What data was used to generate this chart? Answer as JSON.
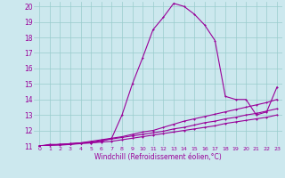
{
  "xlabel": "Windchill (Refroidissement éolien,°C)",
  "bg_color": "#cce8ee",
  "line_color": "#990099",
  "grid_color": "#99cccc",
  "xlim": [
    -0.5,
    23.5
  ],
  "ylim": [
    11,
    20.3
  ],
  "xticks": [
    0,
    1,
    2,
    3,
    4,
    5,
    6,
    7,
    8,
    9,
    10,
    11,
    12,
    13,
    14,
    15,
    16,
    17,
    18,
    19,
    20,
    21,
    22,
    23
  ],
  "yticks": [
    11,
    12,
    13,
    14,
    15,
    16,
    17,
    18,
    19,
    20
  ],
  "main_x": [
    0,
    1,
    2,
    3,
    4,
    5,
    6,
    7,
    8,
    9,
    10,
    11,
    12,
    13,
    14,
    15,
    16,
    17,
    18,
    19,
    20,
    21,
    22,
    23
  ],
  "main_y": [
    11.0,
    11.1,
    11.1,
    11.1,
    11.2,
    11.2,
    11.3,
    11.5,
    13.0,
    15.0,
    16.7,
    18.5,
    19.3,
    20.2,
    20.0,
    19.5,
    18.8,
    17.8,
    14.2,
    14.0,
    14.0,
    13.0,
    13.2,
    14.8
  ],
  "line2_x": [
    0,
    1,
    2,
    3,
    4,
    5,
    6,
    7,
    8,
    9,
    10,
    11,
    12,
    13,
    14,
    15,
    16,
    17,
    18,
    19,
    20,
    21,
    22,
    23
  ],
  "line2_y": [
    11.0,
    11.05,
    11.1,
    11.15,
    11.2,
    11.3,
    11.4,
    11.5,
    11.6,
    11.75,
    11.9,
    12.0,
    12.2,
    12.4,
    12.6,
    12.75,
    12.9,
    13.05,
    13.2,
    13.35,
    13.5,
    13.65,
    13.8,
    14.0
  ],
  "line3_x": [
    0,
    1,
    2,
    3,
    4,
    5,
    6,
    7,
    8,
    9,
    10,
    11,
    12,
    13,
    14,
    15,
    16,
    17,
    18,
    19,
    20,
    21,
    22,
    23
  ],
  "line3_y": [
    11.0,
    11.05,
    11.1,
    11.15,
    11.2,
    11.25,
    11.35,
    11.45,
    11.55,
    11.65,
    11.75,
    11.85,
    11.95,
    12.1,
    12.2,
    12.35,
    12.5,
    12.6,
    12.75,
    12.85,
    13.0,
    13.1,
    13.25,
    13.4
  ],
  "line4_x": [
    0,
    1,
    2,
    3,
    4,
    5,
    6,
    7,
    8,
    9,
    10,
    11,
    12,
    13,
    14,
    15,
    16,
    17,
    18,
    19,
    20,
    21,
    22,
    23
  ],
  "line4_y": [
    11.0,
    11.05,
    11.05,
    11.1,
    11.15,
    11.2,
    11.25,
    11.3,
    11.4,
    11.5,
    11.6,
    11.7,
    11.8,
    11.9,
    12.0,
    12.1,
    12.2,
    12.3,
    12.45,
    12.55,
    12.65,
    12.75,
    12.85,
    13.0
  ],
  "xlabel_fontsize": 5.5,
  "ytick_fontsize": 5.5,
  "xtick_fontsize": 4.5
}
